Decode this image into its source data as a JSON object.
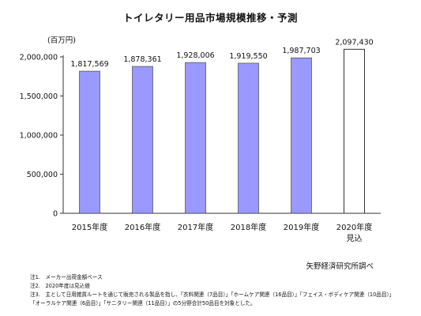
{
  "page": {
    "title": "トイレタリー用品市場規模推移・予測",
    "unit": "(百万円)",
    "source": "矢野経済研究所調べ",
    "notes": [
      "注1.　メーカー出荷金額ベース",
      "注2.　2020年度は見込値",
      "注3.　主として日用雑貨ルートを通じて販売される製品を指し、「衣料関連（7品目）」「ホームケア関連（16品目）」「フェイス・ボディケア関連（10品目）」",
      "「オーラルケア関連（6品目）」「サニタリー関連（11品目）」の5分野合計50品目を対象とした。"
    ]
  },
  "chart_data": {
    "type": "bar",
    "title": "トイレタリー用品市場規模推移・予測",
    "ylabel": "(百万円)",
    "categories": [
      "2015年度",
      "2016年度",
      "2017年度",
      "2018年度",
      "2019年度",
      "2020年度"
    ],
    "category_sublabels": [
      "",
      "",
      "",
      "",
      "",
      "見込"
    ],
    "values": [
      1817569,
      1878361,
      1928006,
      1919550,
      1987703,
      2097430
    ],
    "value_labels": [
      "1,817,569",
      "1,878,361",
      "1,928,006",
      "1,919,550",
      "1,987,703",
      "2,097,430"
    ],
    "estimated": [
      false,
      false,
      false,
      false,
      false,
      true
    ],
    "ylim": [
      0,
      2000000
    ],
    "yticks": [
      0,
      500000,
      1000000,
      1500000,
      2000000
    ],
    "ytick_labels": [
      "0",
      "500,000",
      "1,000,000",
      "1,500,000",
      "2,000,000"
    ],
    "grid": false,
    "colors": {
      "bar": "#9999ff",
      "bar_stroke": "#333333",
      "estimate_fill": "#ffffff",
      "axis": "#333333"
    }
  }
}
